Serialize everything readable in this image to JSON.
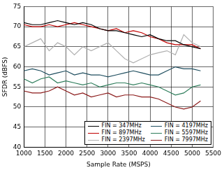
{
  "chart_data": {
    "type": "line",
    "x_label": "Sample Rate (MSPS)",
    "y_label": "SFDR (dBFS)",
    "x": [
      1000,
      1200,
      1400,
      1600,
      1800,
      2000,
      2200,
      2400,
      2600,
      2800,
      3000,
      3200,
      3400,
      3600,
      3800,
      4000,
      4200,
      4400,
      4600,
      4800,
      5000,
      5200
    ],
    "series": [
      {
        "name": "FIN = 347MHz",
        "color": "#000000",
        "values": [
          71,
          70.5,
          70.5,
          71,
          71.5,
          71,
          70.5,
          71,
          70.5,
          69.5,
          69,
          69,
          68.5,
          68,
          67.5,
          68,
          67,
          66.5,
          66.5,
          65.5,
          65,
          64.5
        ]
      },
      {
        "name": "FIN = 897MHz",
        "color": "#c00000",
        "values": [
          70.5,
          70,
          70,
          70.5,
          70,
          70.5,
          71,
          70.5,
          70,
          69.5,
          69,
          69.5,
          68.5,
          69,
          68.5,
          67.5,
          67,
          66,
          65.5,
          65.5,
          65.5,
          64.5
        ]
      },
      {
        "name": "FIN = 2397MHz",
        "color": "#b0b0b0",
        "values": [
          65,
          66,
          67,
          64,
          66,
          65,
          63,
          65,
          64,
          65,
          66,
          64,
          62,
          61,
          62,
          63,
          63.5,
          64,
          63,
          68,
          66,
          65
        ]
      },
      {
        "name": "FIN = 4197MHz",
        "color": "#1f4e5f",
        "values": [
          59,
          59.5,
          59,
          58,
          58.5,
          59,
          58,
          58.5,
          58,
          58,
          57.5,
          58,
          58.5,
          59,
          58.5,
          58,
          58,
          59,
          60,
          59.5,
          59.5,
          59
        ]
      },
      {
        "name": "FIN = 5597MHz",
        "color": "#2e7d5b",
        "values": [
          57,
          56,
          57,
          57.5,
          56,
          56.5,
          56,
          55.5,
          56,
          55,
          55.5,
          56,
          56,
          55.5,
          56,
          55.5,
          55,
          54,
          53,
          53.5,
          55,
          55.5
        ]
      },
      {
        "name": "FIN = 7997MHz",
        "color": "#8b1a1a",
        "values": [
          54,
          53.5,
          53.5,
          54,
          55,
          54,
          53,
          53.5,
          52.5,
          53,
          53.5,
          52.5,
          53,
          53,
          52.5,
          52.5,
          52,
          51,
          50,
          49.5,
          50,
          51.5
        ]
      }
    ],
    "xlim": [
      1000,
      5500
    ],
    "xticks": [
      1000,
      1500,
      2000,
      2500,
      3000,
      3500,
      4000,
      4500,
      5000,
      5500
    ],
    "ylim": [
      40,
      75
    ],
    "yticks": [
      40,
      45,
      50,
      55,
      60,
      65,
      70,
      75
    ],
    "grid": true,
    "legend": "lower right"
  }
}
